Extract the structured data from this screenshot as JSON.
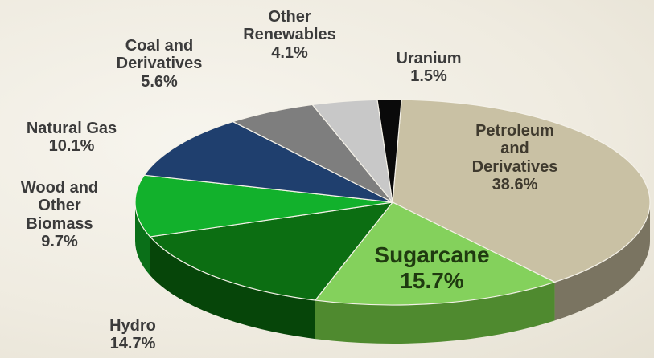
{
  "chart_data": {
    "type": "pie",
    "title": "",
    "slices": [
      {
        "key": "petroleum",
        "lines": [
          "Petroleum",
          "and",
          "Derivatives"
        ],
        "pct": "38.6%",
        "value": 38.6,
        "color": "#c9c1a4",
        "side": "#7a7461"
      },
      {
        "key": "sugarcane",
        "lines": [
          "Sugarcane"
        ],
        "pct": "15.7%",
        "value": 15.7,
        "color": "#84d15c",
        "side": "#4f8a2f"
      },
      {
        "key": "hydro",
        "lines": [
          "Hydro"
        ],
        "pct": "14.7%",
        "value": 14.7,
        "color": "#0c6e12",
        "side": "#064509"
      },
      {
        "key": "wood",
        "lines": [
          "Wood and",
          "Other",
          "Biomass"
        ],
        "pct": "9.7%",
        "value": 9.7,
        "color": "#12b12c",
        "side": "#0a6f18"
      },
      {
        "key": "natural-gas",
        "lines": [
          "Natural Gas"
        ],
        "pct": "10.1%",
        "value": 10.1,
        "color": "#1f3f6e",
        "side": "#13294a"
      },
      {
        "key": "coal",
        "lines": [
          "Coal and",
          "Derivatives"
        ],
        "pct": "5.6%",
        "value": 5.6,
        "color": "#7e7e7e",
        "side": "#4d4d4d"
      },
      {
        "key": "other-renewables",
        "lines": [
          "Other",
          "Renewables"
        ],
        "pct": "4.1%",
        "value": 4.1,
        "color": "#c8c8c8",
        "side": "#8a8a8a"
      },
      {
        "key": "uranium",
        "lines": [
          "Uranium"
        ],
        "pct": "1.5%",
        "value": 1.5,
        "color": "#0a0a0a",
        "side": "#000000"
      }
    ]
  }
}
